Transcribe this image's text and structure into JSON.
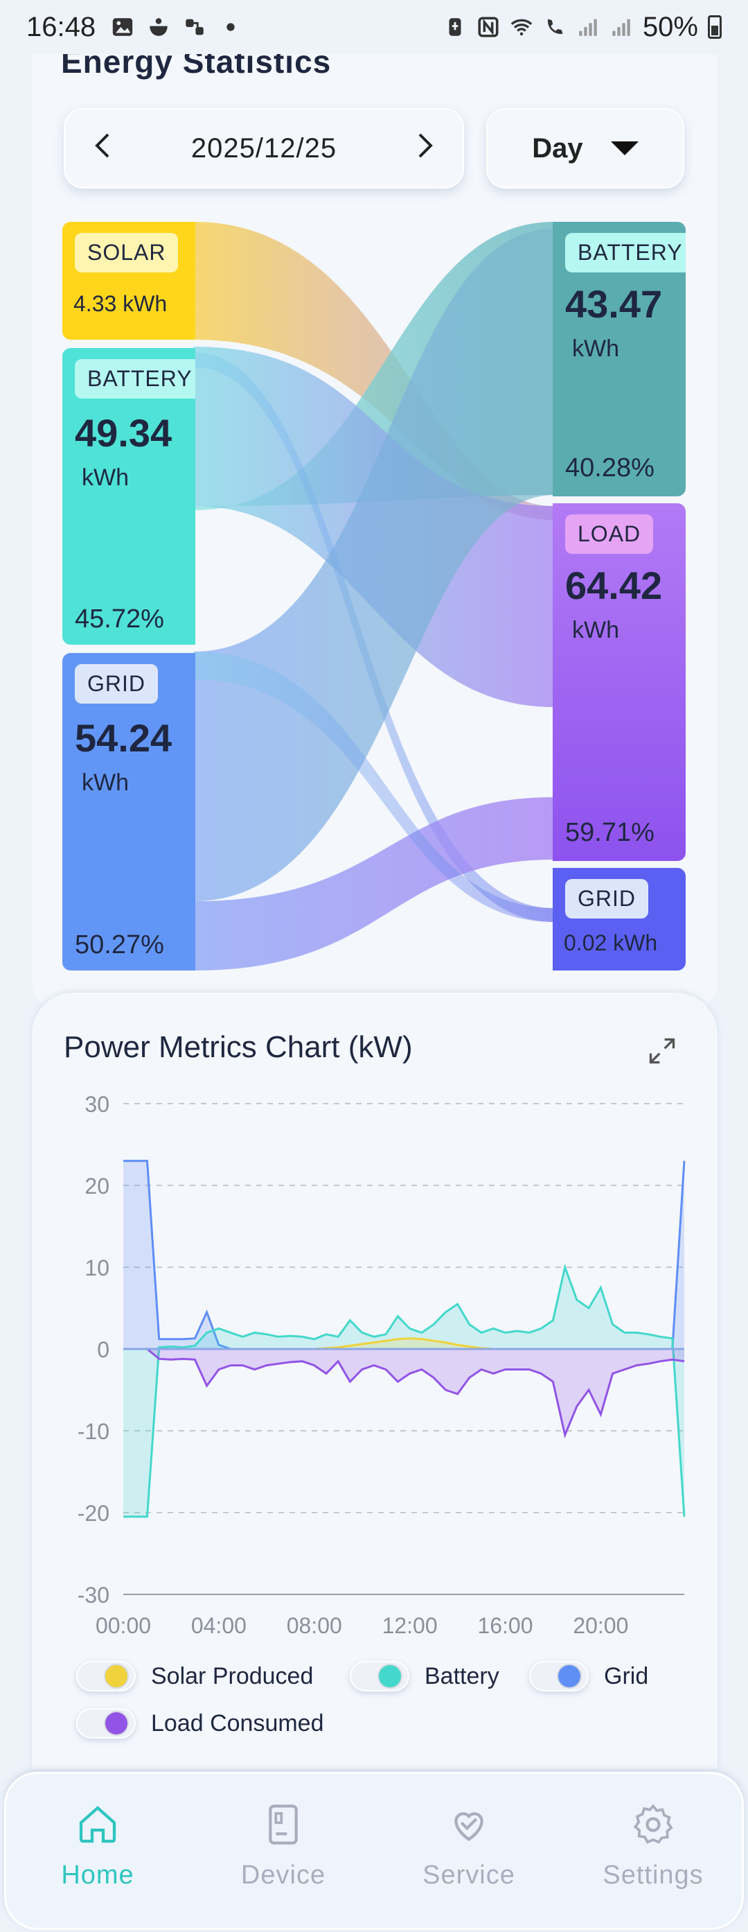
{
  "status_bar": {
    "time": "16:48",
    "battery_percent": "50%",
    "icons": [
      "image-icon",
      "app-icon",
      "share-icon",
      "dot-icon",
      "battery-saver-icon",
      "nfc-icon",
      "wifi-icon",
      "wifi-calling-icon",
      "signal-icon",
      "signal-roaming-icon"
    ]
  },
  "energy": {
    "title": "Energy Statistics",
    "date": "2025/12/25",
    "period": "Day",
    "sources": {
      "solar": {
        "label": "SOLAR",
        "value": "4.33",
        "unit": "kWh",
        "color": "#ffd54a"
      },
      "battery": {
        "label": "BATTERY",
        "value": "49.34",
        "unit": "kWh",
        "percent": "45.72%",
        "color": "#4fe3d5"
      },
      "grid": {
        "label": "GRID",
        "value": "54.24",
        "unit": "kWh",
        "percent": "50.27%",
        "color": "#5f8ef5"
      }
    },
    "targets": {
      "battery": {
        "label": "BATTERY",
        "value": "43.47",
        "unit": "kWh",
        "percent": "40.28%",
        "color": "#5aaeb0"
      },
      "load": {
        "label": "LOAD",
        "value": "64.42",
        "unit": "kWh",
        "percent": "59.71%",
        "color": "#9b5cf0"
      },
      "grid": {
        "label": "GRID",
        "value": "0.02",
        "unit": "kWh",
        "color": "#5b63f2"
      }
    }
  },
  "power_chart": {
    "title": "Power Metrics Chart (kW)"
  },
  "chart_data": {
    "type": "area",
    "title": "Power Metrics Chart (kW)",
    "xlabel": "",
    "ylabel": "",
    "ylim": [
      -30,
      30
    ],
    "yticks": [
      "30",
      "20",
      "10",
      "0",
      "-10",
      "-20",
      "-30"
    ],
    "xticks": [
      "00:00",
      "04:00",
      "08:00",
      "12:00",
      "16:00",
      "20:00"
    ],
    "grid": true,
    "legend_position": "bottom",
    "x": [
      "00:00",
      "00:30",
      "01:00",
      "01:30",
      "02:00",
      "02:30",
      "03:00",
      "03:30",
      "04:00",
      "04:30",
      "05:00",
      "05:30",
      "06:00",
      "06:30",
      "07:00",
      "07:30",
      "08:00",
      "08:30",
      "09:00",
      "09:30",
      "10:00",
      "10:30",
      "11:00",
      "11:30",
      "12:00",
      "12:30",
      "13:00",
      "13:30",
      "14:00",
      "14:30",
      "15:00",
      "15:30",
      "16:00",
      "16:30",
      "17:00",
      "17:30",
      "18:00",
      "18:30",
      "19:00",
      "19:30",
      "20:00",
      "20:30",
      "21:00",
      "21:30",
      "22:00",
      "22:30",
      "23:00",
      "23:30"
    ],
    "series": [
      {
        "name": "Solar Produced",
        "color": "#f0d23c",
        "values": [
          0,
          0,
          0,
          0,
          0,
          0,
          0,
          0,
          0,
          0,
          0,
          0,
          0,
          0,
          0,
          0,
          0,
          0.1,
          0.2,
          0.4,
          0.6,
          0.8,
          1.0,
          1.2,
          1.3,
          1.2,
          1.0,
          0.8,
          0.5,
          0.3,
          0.1,
          0,
          0,
          0,
          0,
          0,
          0,
          0,
          0,
          0,
          0,
          0,
          0,
          0,
          0,
          0,
          0,
          0
        ]
      },
      {
        "name": "Battery",
        "color": "#43d8cb",
        "values": [
          -20.5,
          -20.5,
          -20.5,
          0.2,
          0.3,
          0.2,
          0.4,
          2.0,
          2.5,
          2.0,
          1.5,
          2.0,
          1.8,
          1.5,
          1.6,
          1.5,
          1.2,
          1.8,
          1.5,
          3.5,
          2.0,
          1.5,
          1.8,
          4.0,
          2.5,
          2.0,
          3.0,
          4.5,
          5.5,
          3.0,
          2.0,
          2.5,
          2.0,
          2.2,
          2.0,
          2.5,
          3.5,
          10.0,
          6.0,
          5.0,
          7.5,
          3.0,
          2.0,
          2.0,
          1.8,
          1.5,
          1.3,
          -20.5
        ]
      },
      {
        "name": "Grid",
        "color": "#5f8ef5",
        "values": [
          23,
          23,
          23,
          1.2,
          1.2,
          1.2,
          1.3,
          4.5,
          0.5,
          0,
          0,
          0,
          0,
          0,
          0,
          0,
          0,
          0,
          0,
          0,
          0,
          0,
          0,
          0,
          0,
          0,
          0,
          0,
          0,
          0,
          0,
          0,
          0,
          0,
          0,
          0,
          0,
          0,
          0,
          0,
          0,
          0,
          0,
          0,
          0,
          0,
          0,
          23
        ]
      },
      {
        "name": "Load Consumed",
        "color": "#9254e6",
        "values": [
          0,
          0,
          0,
          -1.2,
          -1.3,
          -1.2,
          -1.3,
          -4.5,
          -2.5,
          -2.0,
          -2.0,
          -2.5,
          -2.0,
          -1.8,
          -1.6,
          -1.5,
          -2.0,
          -3.0,
          -1.5,
          -4.0,
          -2.5,
          -2.0,
          -2.5,
          -4.0,
          -3.0,
          -2.5,
          -3.5,
          -5.0,
          -5.5,
          -3.5,
          -2.5,
          -3.0,
          -2.5,
          -2.5,
          -2.5,
          -3.0,
          -4.0,
          -10.5,
          -7.0,
          -5.0,
          -8.0,
          -3.0,
          -2.5,
          -2.0,
          -1.8,
          -1.5,
          -1.3,
          -1.5
        ]
      }
    ]
  },
  "legend": [
    {
      "label": "Solar Produced",
      "color": "#f0d23c"
    },
    {
      "label": "Battery",
      "color": "#43d8cb"
    },
    {
      "label": "Grid",
      "color": "#5f8ef5"
    },
    {
      "label": "Load Consumed",
      "color": "#9254e6"
    }
  ],
  "nav": {
    "items": [
      {
        "label": "Home",
        "icon": "home-icon",
        "active": true
      },
      {
        "label": "Device",
        "icon": "device-icon",
        "active": false
      },
      {
        "label": "Service",
        "icon": "service-icon",
        "active": false
      },
      {
        "label": "Settings",
        "icon": "gear-icon",
        "active": false
      }
    ],
    "active_color": "#2ec5c0",
    "inactive_color": "#a8aebc"
  }
}
